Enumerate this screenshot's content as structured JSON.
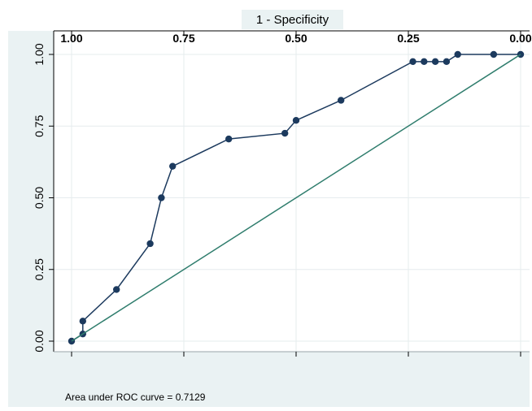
{
  "chart_data": {
    "type": "line",
    "title": "",
    "xlabel": "1 - Specificity",
    "ylabel": "",
    "x_axis_position": "top",
    "x_reversed": true,
    "xlim": [
      0,
      1
    ],
    "ylim": [
      0,
      1
    ],
    "x_ticks": [
      1.0,
      0.75,
      0.5,
      0.25,
      0.0
    ],
    "x_tick_labels": [
      "1.00",
      "0.75",
      "0.50",
      "0.25",
      "0.00"
    ],
    "y_ticks": [
      0,
      0.25,
      0.5,
      0.75,
      1.0
    ],
    "y_tick_labels": [
      "0.00",
      "0.25",
      "0.50",
      "0.75",
      "1.00"
    ],
    "grid": true,
    "legend": "none",
    "series": [
      {
        "x": [
          1.0,
          0.975,
          0.975,
          0.9,
          0.825,
          0.8,
          0.775,
          0.65,
          0.525,
          0.5,
          0.4,
          0.24,
          0.215,
          0.19,
          0.165,
          0.14,
          0.06,
          0.0
        ],
        "y": [
          0.0,
          0.025,
          0.07,
          0.18,
          0.34,
          0.5,
          0.61,
          0.705,
          0.725,
          0.77,
          0.84,
          0.975,
          0.975,
          0.975,
          0.975,
          1.0,
          1.0,
          1.0
        ],
        "color": "#1c3a5e",
        "markers": true
      },
      {
        "x": [
          1.0,
          0.0
        ],
        "y": [
          0.0,
          1.0
        ],
        "color": "#2f7d6d",
        "markers": false
      }
    ],
    "annotation": "Area under ROC curve = 0.7129"
  },
  "colors": {
    "outer_background": "#eaf2f3",
    "plot_background": "#ffffff",
    "grid": "#e6ecee",
    "roc_line": "#1c3a5e",
    "reference_line": "#2f7d6d"
  }
}
